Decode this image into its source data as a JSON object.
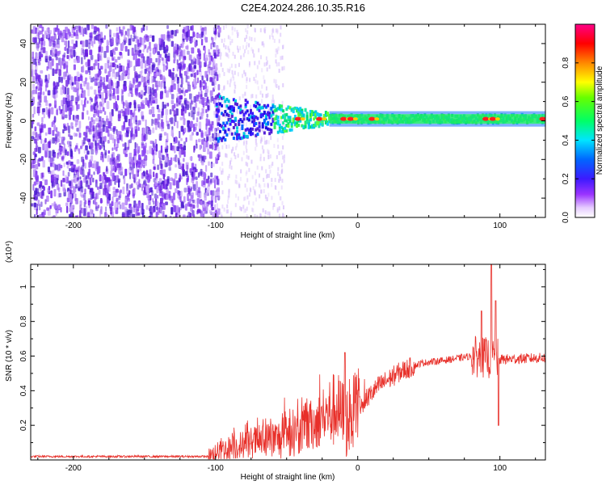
{
  "title": "C2E4.2024.286.10.35.R16",
  "chart_data": [
    {
      "type": "heatmap",
      "xlabel": "Height of straight line (km)",
      "ylabel": "Frequency (Hz)",
      "xlim": [
        -230,
        132
      ],
      "ylim": [
        -50,
        50
      ],
      "xticks": [
        -200,
        -100,
        0,
        100
      ],
      "yticks": [
        -40,
        -20,
        0,
        20,
        40
      ],
      "colorbar": {
        "label": "Normalized spectral amplitude",
        "range": [
          0,
          1
        ],
        "ticks": [
          0.0,
          0.2,
          0.4,
          0.6,
          0.8
        ],
        "colormap": "rainbow (violet-blue-cyan-green-yellow-red-magenta)"
      },
      "features": {
        "noise_region_km": [
          -230,
          -102
        ],
        "signal_center_hz": 1,
        "signal_band_stable_hz": [
          -2,
          3
        ],
        "signal_band_transition_km": [
          -100,
          -20
        ],
        "strong_peaks_km": [
          -42,
          -27,
          -10,
          -5,
          10,
          90,
          95,
          130
        ]
      }
    },
    {
      "type": "line",
      "xlabel": "Height of straight line (km)",
      "ylabel": "SNR (10 * v/v)",
      "y_multiplier": "(x10⁴)",
      "xlim": [
        -230,
        132
      ],
      "ylim": [
        0,
        1.13
      ],
      "xticks": [
        -200,
        -100,
        0,
        100
      ],
      "yticks": [
        0.2,
        0.4,
        0.6,
        0.8,
        1
      ],
      "color": "#e8302a",
      "series_profile": [
        {
          "x": -230,
          "y": 0.02
        },
        {
          "x": -105,
          "y": 0.02
        },
        {
          "x": -95,
          "y": 0.06
        },
        {
          "x": -75,
          "y": 0.1
        },
        {
          "x": -55,
          "y": 0.12
        },
        {
          "x": -40,
          "y": 0.16
        },
        {
          "x": -25,
          "y": 0.24
        },
        {
          "x": -15,
          "y": 0.3
        },
        {
          "x": -8,
          "y": 0.22
        },
        {
          "x": 0,
          "y": 0.3
        },
        {
          "x": 15,
          "y": 0.43
        },
        {
          "x": 30,
          "y": 0.51
        },
        {
          "x": 45,
          "y": 0.56
        },
        {
          "x": 65,
          "y": 0.58
        },
        {
          "x": 80,
          "y": 0.6
        },
        {
          "x": 100,
          "y": 0.58
        },
        {
          "x": 132,
          "y": 0.59
        }
      ],
      "peaks": [
        {
          "x": -9,
          "y": 0.62
        },
        {
          "x": 94,
          "y": 1.13
        },
        {
          "x": 97,
          "y": 0.92
        },
        {
          "x": 87,
          "y": 0.86
        },
        {
          "x": 99,
          "y": 0.2
        }
      ]
    }
  ]
}
